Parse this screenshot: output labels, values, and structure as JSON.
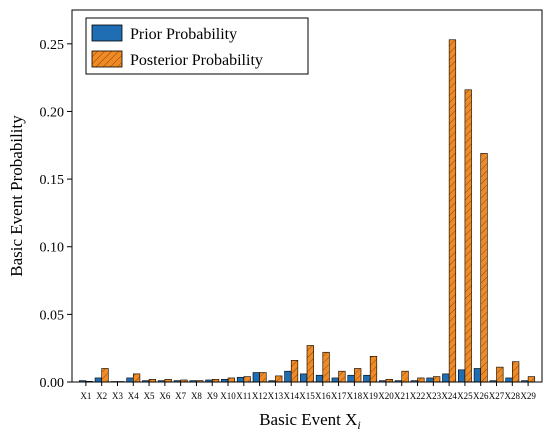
{
  "chart_data": {
    "type": "bar",
    "xlabel": "Basic Event X",
    "xlabel_subscript": "i",
    "ylabel": "Basic Event Probability",
    "ylim": [
      0,
      0.275
    ],
    "yticks": [
      0.0,
      0.05,
      0.1,
      0.15,
      0.2,
      0.25
    ],
    "ytick_labels": [
      "0.00",
      "0.05",
      "0.10",
      "0.15",
      "0.20",
      "0.25"
    ],
    "legend_position": "top-left",
    "grid": false,
    "categories": [
      "X1",
      "X2",
      "X3",
      "X4",
      "X5",
      "X6",
      "X7",
      "X8",
      "X9",
      "X10",
      "X11",
      "X12",
      "X13",
      "X14",
      "X15",
      "X16",
      "X17",
      "X18",
      "X19",
      "X20",
      "X21",
      "X22",
      "X23",
      "X24",
      "X25",
      "X26",
      "X27",
      "X28",
      "X29"
    ],
    "series": [
      {
        "name": "Prior Probability",
        "color": "#1f6eb4",
        "pattern": "solid",
        "values": [
          0.001,
          0.003,
          0.0003,
          0.003,
          0.001,
          0.001,
          0.001,
          0.001,
          0.0015,
          0.002,
          0.0035,
          0.007,
          0.001,
          0.008,
          0.006,
          0.005,
          0.003,
          0.005,
          0.005,
          0.001,
          0.001,
          0.001,
          0.003,
          0.006,
          0.009,
          0.01,
          0.001,
          0.003,
          0.001
        ]
      },
      {
        "name": "Posterior Probability",
        "color": "#f08a24",
        "pattern": "hatch",
        "values": [
          0.0005,
          0.01,
          0.0002,
          0.006,
          0.002,
          0.002,
          0.0015,
          0.001,
          0.002,
          0.003,
          0.004,
          0.007,
          0.0045,
          0.016,
          0.027,
          0.022,
          0.008,
          0.01,
          0.019,
          0.002,
          0.008,
          0.003,
          0.004,
          0.253,
          0.216,
          0.169,
          0.011,
          0.015,
          0.004
        ]
      }
    ]
  }
}
